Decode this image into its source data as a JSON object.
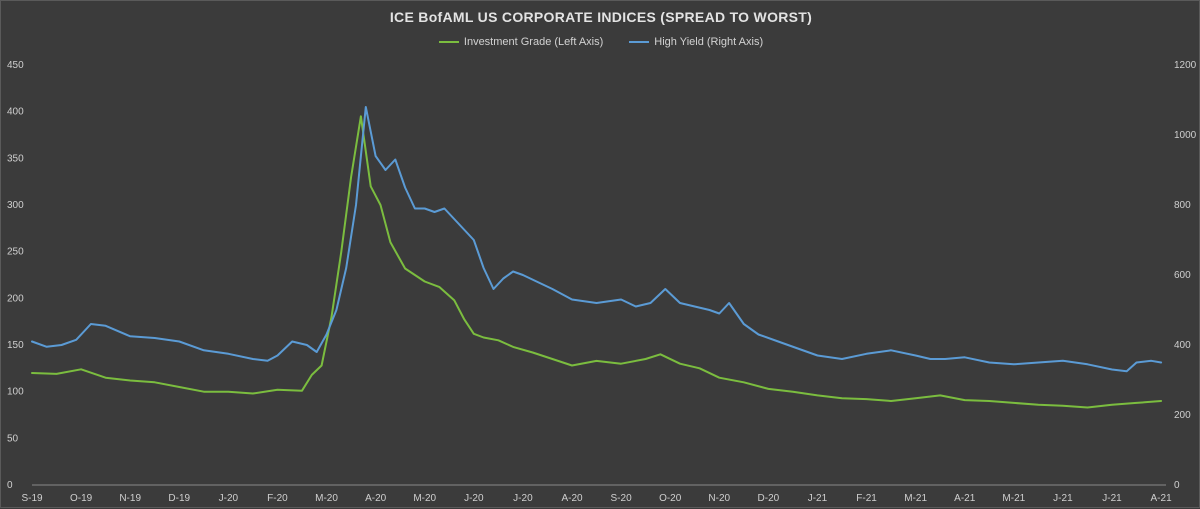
{
  "chart_data": {
    "type": "line",
    "title": "ICE BofAML US CORPORATE INDICES (SPREAD TO WORST)",
    "x_tick_labels": [
      "S-19",
      "O-19",
      "N-19",
      "D-19",
      "J-20",
      "F-20",
      "M-20",
      "A-20",
      "M-20",
      "J-20",
      "J-20",
      "A-20",
      "S-20",
      "O-20",
      "N-20",
      "D-20",
      "J-21",
      "F-21",
      "M-21",
      "A-21",
      "M-21",
      "J-21",
      "J-21",
      "A-21"
    ],
    "x_range": [
      0,
      23.1
    ],
    "y_left": {
      "ticks": [
        0,
        50,
        100,
        150,
        200,
        250,
        300,
        350,
        400,
        450
      ],
      "range": [
        0,
        450
      ]
    },
    "y_right": {
      "ticks": [
        0,
        200,
        400,
        600,
        800,
        1000,
        1200
      ],
      "range": [
        0,
        1200
      ]
    },
    "grid": false,
    "legend": "top-center",
    "series": [
      {
        "name": "Investment Grade (Left Axis)",
        "axis": "left",
        "color": "#7bbd3f",
        "x": [
          0,
          0.5,
          1.0,
          1.5,
          2.0,
          2.5,
          3.0,
          3.5,
          4.0,
          4.5,
          5.0,
          5.5,
          5.7,
          5.9,
          6.1,
          6.3,
          6.5,
          6.7,
          6.9,
          7.1,
          7.3,
          7.6,
          8.0,
          8.3,
          8.6,
          8.8,
          9.0,
          9.2,
          9.5,
          9.8,
          10.2,
          10.6,
          11.0,
          11.5,
          12.0,
          12.5,
          12.8,
          13.2,
          13.6,
          14.0,
          14.5,
          15.0,
          15.5,
          16.0,
          16.5,
          17.0,
          17.5,
          18.0,
          18.5,
          19.0,
          19.5,
          20.0,
          20.5,
          21.0,
          21.5,
          22.0,
          22.5,
          23.0
        ],
        "y": [
          120,
          119,
          124,
          115,
          112,
          110,
          105,
          100,
          100,
          98,
          102,
          101,
          118,
          128,
          180,
          250,
          330,
          395,
          320,
          300,
          260,
          232,
          218,
          212,
          198,
          178,
          162,
          158,
          155,
          148,
          142,
          135,
          128,
          133,
          130,
          135,
          140,
          130,
          125,
          115,
          110,
          103,
          100,
          96,
          93,
          92,
          90,
          93,
          96,
          91,
          90,
          88,
          86,
          85,
          83,
          86,
          88,
          90
        ]
      },
      {
        "name": "High Yield (Right Axis)",
        "axis": "right",
        "color": "#5b9bd5",
        "x": [
          0,
          0.3,
          0.6,
          0.9,
          1.2,
          1.5,
          2.0,
          2.5,
          3.0,
          3.5,
          4.0,
          4.5,
          4.8,
          5.0,
          5.3,
          5.6,
          5.8,
          6.0,
          6.2,
          6.4,
          6.6,
          6.8,
          7.0,
          7.2,
          7.4,
          7.6,
          7.8,
          8.0,
          8.2,
          8.4,
          8.6,
          8.8,
          9.0,
          9.2,
          9.4,
          9.6,
          9.8,
          10.0,
          10.3,
          10.6,
          11.0,
          11.5,
          12.0,
          12.3,
          12.6,
          12.9,
          13.2,
          13.5,
          13.8,
          14.0,
          14.2,
          14.5,
          14.8,
          15.2,
          15.6,
          16.0,
          16.5,
          17.0,
          17.5,
          18.0,
          18.3,
          18.6,
          19.0,
          19.5,
          20.0,
          20.5,
          21.0,
          21.5,
          22.0,
          22.3,
          22.5,
          22.8,
          23.0
        ],
        "y": [
          410,
          395,
          400,
          415,
          460,
          455,
          425,
          420,
          410,
          385,
          375,
          360,
          355,
          370,
          410,
          400,
          380,
          430,
          500,
          620,
          800,
          1080,
          940,
          900,
          930,
          850,
          790,
          790,
          780,
          790,
          760,
          730,
          700,
          620,
          560,
          590,
          610,
          600,
          580,
          560,
          530,
          520,
          530,
          510,
          520,
          560,
          520,
          510,
          500,
          490,
          520,
          460,
          430,
          410,
          390,
          370,
          360,
          375,
          385,
          370,
          360,
          360,
          365,
          350,
          345,
          350,
          355,
          345,
          330,
          325,
          350,
          355,
          350
        ]
      }
    ]
  }
}
